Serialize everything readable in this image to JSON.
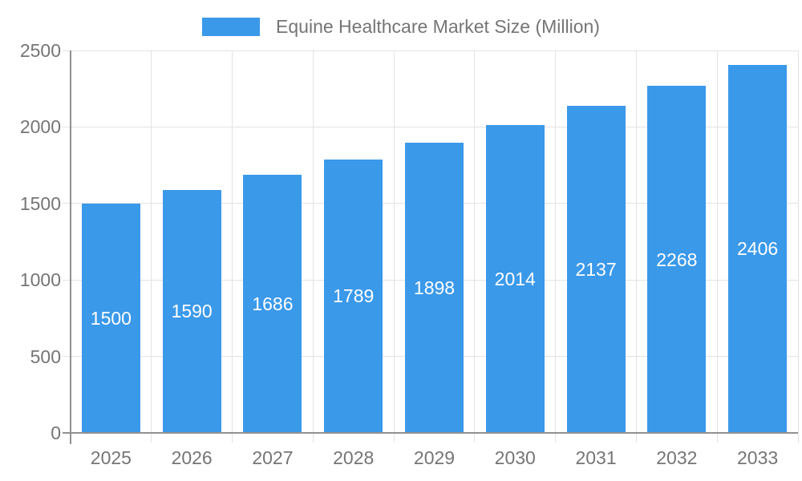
{
  "chart_data": {
    "type": "bar",
    "title": "Equine Healthcare Market Size (Million)",
    "categories": [
      "2025",
      "2026",
      "2027",
      "2028",
      "2029",
      "2030",
      "2031",
      "2032",
      "2033"
    ],
    "series": [
      {
        "name": "Equine Healthcare Market Size (Million)",
        "values": [
          1500,
          1590,
          1686,
          1789,
          1898,
          2014,
          2137,
          2268,
          2406
        ]
      }
    ],
    "xlabel": "",
    "ylabel": "",
    "ylim": [
      0,
      2500
    ],
    "yticks": [
      0,
      500,
      1000,
      1500,
      2000,
      2500
    ],
    "grid": true,
    "legend_position": "top",
    "value_labels": "centered-inside-bars",
    "colors": {
      "bar": "#3B99EA",
      "value_label": "#FFFFFF",
      "axis_text": "#757575",
      "grid_line": "#E3E3E3",
      "axis_line": "#919191",
      "background": "#FFFFFF"
    }
  }
}
